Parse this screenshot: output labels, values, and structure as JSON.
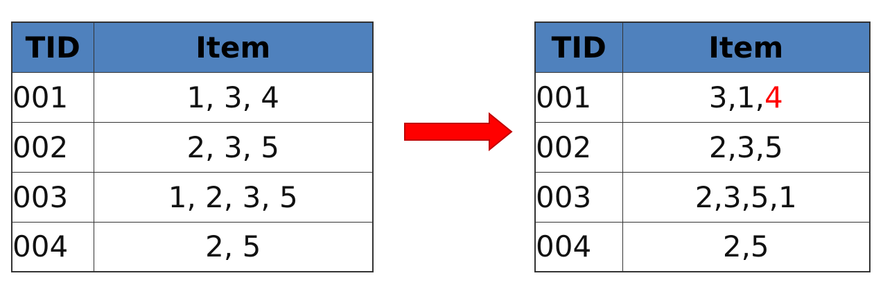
{
  "left_table": {
    "headers": {
      "tid": "TID",
      "item": "Item"
    },
    "rows": [
      {
        "tid": "001",
        "items": "1, 3, 4"
      },
      {
        "tid": "002",
        "items": "2, 3, 5"
      },
      {
        "tid": "003",
        "items": "1, 2, 3, 5"
      },
      {
        "tid": "004",
        "items": "2, 5"
      }
    ]
  },
  "arrow": {
    "color": "#ff0000",
    "icon": "right-arrow-icon"
  },
  "right_table": {
    "headers": {
      "tid": "TID",
      "item": "Item"
    },
    "rows": [
      {
        "tid": "001",
        "items_prefix": "3,1,",
        "items_highlight": "4",
        "highlight_color": "#ff0000"
      },
      {
        "tid": "002",
        "items": "2,3,5"
      },
      {
        "tid": "003",
        "items": "2,3,5,1"
      },
      {
        "tid": "004",
        "items": "2,5"
      }
    ]
  },
  "header_color": "#4f81bd"
}
